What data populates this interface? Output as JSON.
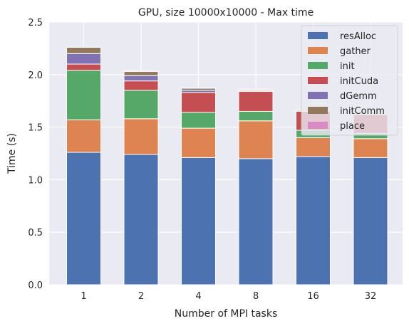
{
  "chart_data": {
    "type": "bar",
    "stacked": true,
    "title": "GPU, size 10000x10000 - Max time",
    "xlabel": "Number of MPI tasks",
    "ylabel": "Time (s)",
    "ylim": [
      0,
      2.5
    ],
    "yticks": [
      "0.0",
      "0.5",
      "1.0",
      "1.5",
      "2.0",
      "2.5"
    ],
    "grid": true,
    "legend_position": "top-right",
    "categories": [
      "1",
      "2",
      "4",
      "8",
      "16",
      "32"
    ],
    "series": [
      {
        "name": "resAlloc",
        "color": "#4c72b0",
        "values": [
          1.26,
          1.24,
          1.21,
          1.2,
          1.22,
          1.21
        ]
      },
      {
        "name": "gather",
        "color": "#dd8452",
        "values": [
          0.31,
          0.34,
          0.28,
          0.36,
          0.18,
          0.18
        ]
      },
      {
        "name": "init",
        "color": "#55a868",
        "values": [
          0.47,
          0.27,
          0.15,
          0.09,
          0.07,
          0.05
        ]
      },
      {
        "name": "initCuda",
        "color": "#c44e52",
        "values": [
          0.06,
          0.09,
          0.19,
          0.19,
          0.18,
          0.18
        ]
      },
      {
        "name": "dGemm",
        "color": "#8172b3",
        "values": [
          0.1,
          0.05,
          0.02,
          0.005,
          0.005,
          0.005
        ]
      },
      {
        "name": "initComm",
        "color": "#937860",
        "values": [
          0.06,
          0.04,
          0.02,
          0.01,
          0.01,
          0.01
        ]
      },
      {
        "name": "place",
        "color": "#da8bc3",
        "values": [
          0.002,
          0.002,
          0.002,
          0.002,
          0.002,
          0.002
        ]
      }
    ]
  }
}
